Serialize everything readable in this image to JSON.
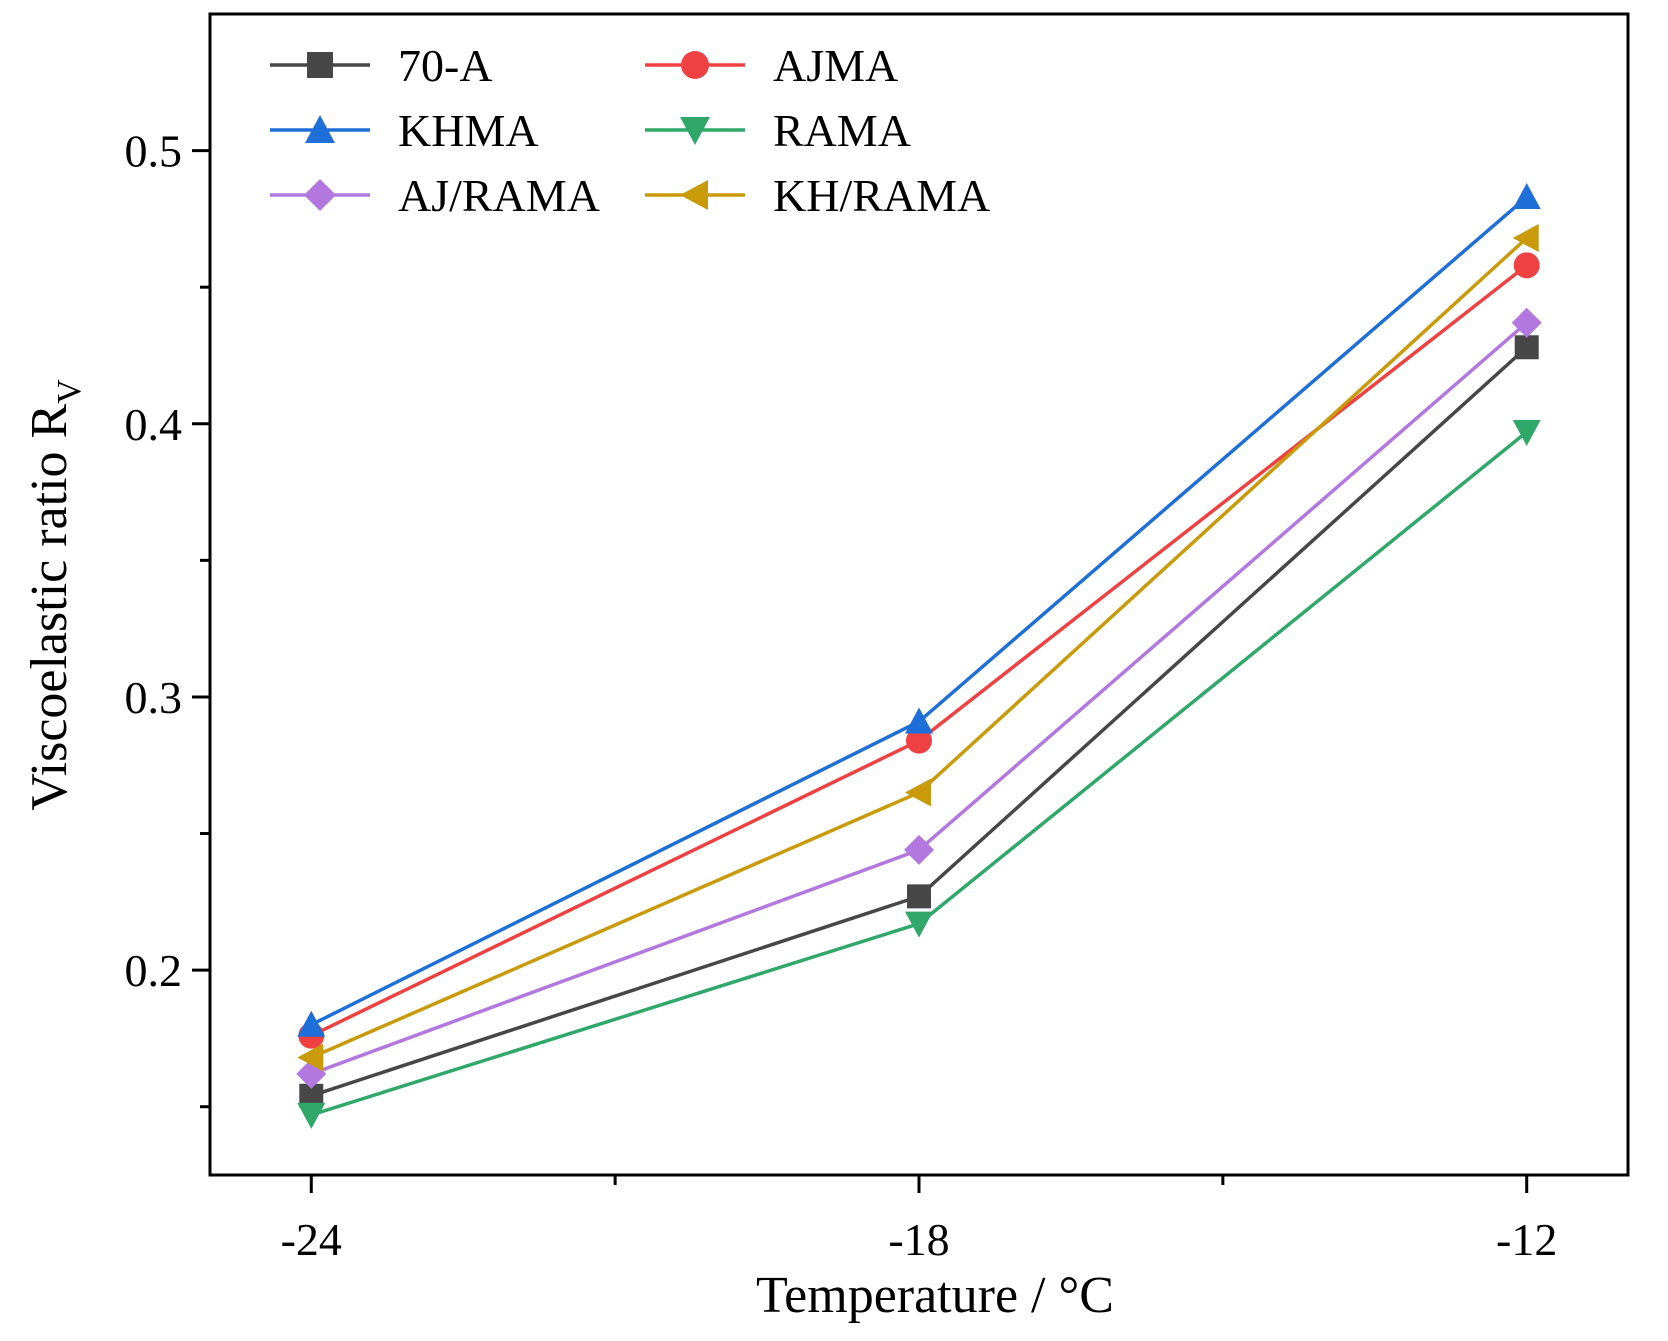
{
  "chart_data": {
    "type": "line",
    "title": "",
    "xlabel": "Temperature / °C",
    "ylabel_main": "Viscoelastic ratio R",
    "ylabel_sub": "V",
    "x": [
      -24,
      -18,
      -12
    ],
    "x_tick_labels": [
      "-24",
      "-18",
      "-12"
    ],
    "y_ticks": [
      0.2,
      0.3,
      0.4,
      0.5
    ],
    "y_tick_labels": [
      "0.2",
      "0.3",
      "0.4",
      "0.5"
    ],
    "y_minor_ticks": [
      0.15,
      0.25,
      0.35,
      0.45
    ],
    "x_minor_ticks": [
      -21,
      -15
    ],
    "xlim": [
      -25,
      -11
    ],
    "ylim": [
      0.125,
      0.55
    ],
    "grid": false,
    "legend_position": "top-left",
    "series": [
      {
        "name": "70-A",
        "marker": "square",
        "color": "#474747",
        "values": [
          0.154,
          0.227,
          0.428
        ]
      },
      {
        "name": "AJMA",
        "marker": "circle",
        "color": "#ef4141",
        "values": [
          0.176,
          0.284,
          0.458
        ]
      },
      {
        "name": "KHMA",
        "marker": "triangle-up",
        "color": "#1f6fd8",
        "values": [
          0.18,
          0.291,
          0.483
        ]
      },
      {
        "name": "RAMA",
        "marker": "triangle-down",
        "color": "#2fa86a",
        "values": [
          0.147,
          0.217,
          0.397
        ]
      },
      {
        "name": "AJ/RAMA",
        "marker": "diamond",
        "color": "#b278e0",
        "values": [
          0.162,
          0.244,
          0.437
        ]
      },
      {
        "name": "KH/RAMA",
        "marker": "triangle-left",
        "color": "#c99a0a",
        "values": [
          0.168,
          0.265,
          0.468
        ]
      }
    ]
  }
}
